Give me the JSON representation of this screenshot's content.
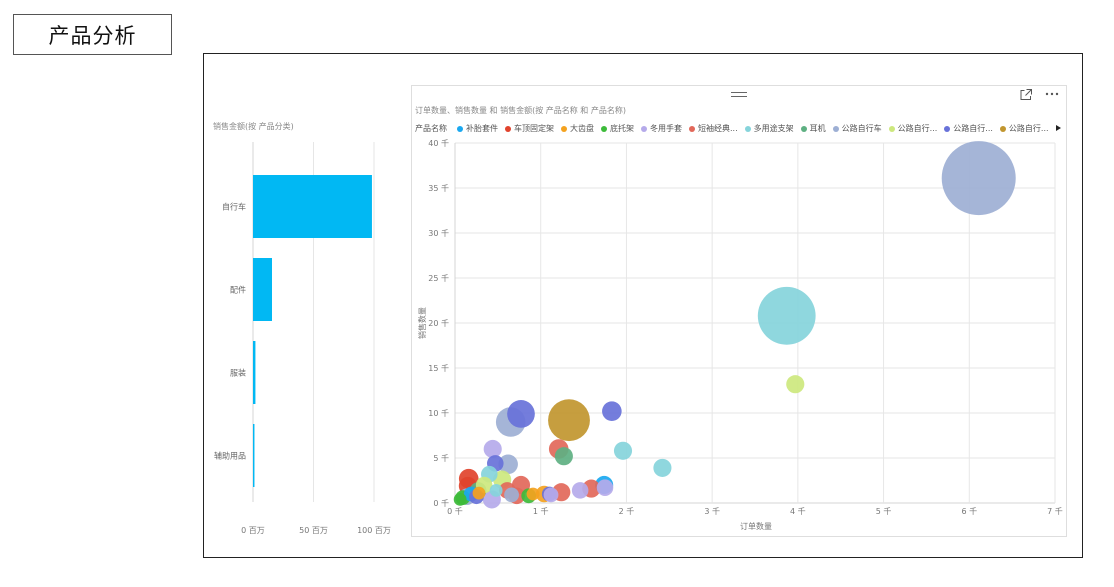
{
  "page": {
    "title": "产品分析"
  },
  "visual_header": {
    "drag_icon": "drag-handle-icon",
    "focus_icon": "focus-mode-icon",
    "more_icon": "more-options-icon"
  },
  "chart_data": [
    {
      "type": "bar",
      "orientation": "horizontal",
      "title": "销售金额(按 产品分类)",
      "categories": [
        "自行车",
        "配件",
        "服装",
        "辅助用品"
      ],
      "values": [
        98.3,
        15.7,
        2.0,
        1.2
      ],
      "xlim": [
        0,
        100
      ],
      "xticks": [
        0,
        50,
        100
      ],
      "xtick_labels": [
        "0 百万",
        "50 百万",
        "100 百万"
      ],
      "color": "#01B8F3",
      "grid": true
    },
    {
      "type": "scatter",
      "title": "订单数量、销售数量 和 销售金额(按 产品名称 和 产品名称)",
      "xlabel": "订单数量",
      "ylabel": "销售数量",
      "xlim": [
        0,
        7000
      ],
      "ylim": [
        0,
        40000
      ],
      "xticks": [
        0,
        1000,
        2000,
        3000,
        4000,
        5000,
        6000,
        7000
      ],
      "xtick_labels": [
        "0 千",
        "1 千",
        "2 千",
        "3 千",
        "4 千",
        "5 千",
        "6 千",
        "7 千"
      ],
      "yticks": [
        0,
        5000,
        10000,
        15000,
        20000,
        25000,
        30000,
        35000,
        40000
      ],
      "ytick_labels": [
        "0 千",
        "5 千",
        "10 千",
        "15 千",
        "20 千",
        "25 千",
        "30 千",
        "35 千",
        "40 千"
      ],
      "grid": true,
      "legend": {
        "position": "top",
        "title": "产品名称",
        "next_icon": "triangle-right-icon",
        "items": [
          {
            "label": "补胎套件",
            "color": "#1AA8F0"
          },
          {
            "label": "车顶固定架",
            "color": "#E1432D"
          },
          {
            "label": "大齿盘",
            "color": "#F4A21F"
          },
          {
            "label": "底托架",
            "color": "#3DBB3A"
          },
          {
            "label": "冬用手套",
            "color": "#B5AAEA"
          },
          {
            "label": "短袖经典...",
            "color": "#E2685A"
          },
          {
            "label": "多用途支架",
            "color": "#86D4DB"
          },
          {
            "label": "耳机",
            "color": "#5EB082"
          },
          {
            "label": "公路自行车",
            "color": "#9DAFD4"
          },
          {
            "label": "公路自行...",
            "color": "#CDE87E"
          },
          {
            "label": "公路自行...",
            "color": "#6872D9"
          },
          {
            "label": "公路自行...",
            "color": "#C1962F"
          }
        ]
      },
      "points": [
        {
          "x": 6110,
          "y": 36100,
          "size": 1.0,
          "color": "#9DAFD4"
        },
        {
          "x": 3870,
          "y": 20800,
          "size": 0.61,
          "color": "#86D4DB"
        },
        {
          "x": 3970,
          "y": 13200,
          "size": 0.06,
          "color": "#CDE87E"
        },
        {
          "x": 2420,
          "y": 3900,
          "size": 0.06,
          "color": "#86D4DB"
        },
        {
          "x": 1960,
          "y": 5800,
          "size": 0.06,
          "color": "#86D4DB"
        },
        {
          "x": 1830,
          "y": 10200,
          "size": 0.07,
          "color": "#6872D9"
        },
        {
          "x": 1330,
          "y": 9200,
          "size": 0.32,
          "color": "#C1962F"
        },
        {
          "x": 650,
          "y": 9000,
          "size": 0.16,
          "color": "#9DAFD4"
        },
        {
          "x": 770,
          "y": 9900,
          "size": 0.14,
          "color": "#6872D9"
        },
        {
          "x": 1210,
          "y": 6000,
          "size": 0.07,
          "color": "#E2685A"
        },
        {
          "x": 1270,
          "y": 5200,
          "size": 0.06,
          "color": "#5EB082"
        },
        {
          "x": 440,
          "y": 6000,
          "size": 0.06,
          "color": "#B5AAEA"
        },
        {
          "x": 620,
          "y": 4300,
          "size": 0.07,
          "color": "#9DAFD4"
        },
        {
          "x": 470,
          "y": 4400,
          "size": 0.05,
          "color": "#6872D9"
        },
        {
          "x": 400,
          "y": 3200,
          "size": 0.05,
          "color": "#86D4DB"
        },
        {
          "x": 160,
          "y": 2700,
          "size": 0.07,
          "color": "#E1432D"
        },
        {
          "x": 550,
          "y": 2600,
          "size": 0.06,
          "color": "#CDE87E"
        },
        {
          "x": 770,
          "y": 2000,
          "size": 0.06,
          "color": "#E2685A"
        },
        {
          "x": 1740,
          "y": 2000,
          "size": 0.06,
          "color": "#1AA8F0"
        },
        {
          "x": 1750,
          "y": 1700,
          "size": 0.05,
          "color": "#B5AAEA"
        },
        {
          "x": 1590,
          "y": 1600,
          "size": 0.06,
          "color": "#E2685A"
        },
        {
          "x": 1460,
          "y": 1400,
          "size": 0.05,
          "color": "#B5AAEA"
        },
        {
          "x": 1240,
          "y": 1200,
          "size": 0.06,
          "color": "#E2685A"
        },
        {
          "x": 1040,
          "y": 1000,
          "size": 0.05,
          "color": "#F4A21F"
        },
        {
          "x": 1100,
          "y": 1000,
          "size": 0.04,
          "color": "#6872D9"
        },
        {
          "x": 1120,
          "y": 900,
          "size": 0.04,
          "color": "#B5AAEA"
        },
        {
          "x": 860,
          "y": 800,
          "size": 0.04,
          "color": "#3DBB3A"
        },
        {
          "x": 910,
          "y": 1000,
          "size": 0.03,
          "color": "#F4A21F"
        },
        {
          "x": 150,
          "y": 1900,
          "size": 0.06,
          "color": "#E1432D"
        },
        {
          "x": 140,
          "y": 700,
          "size": 0.05,
          "color": "#9DAFD4"
        },
        {
          "x": 90,
          "y": 600,
          "size": 0.04,
          "color": "#3DBB3A"
        },
        {
          "x": 430,
          "y": 400,
          "size": 0.06,
          "color": "#B5AAEA"
        },
        {
          "x": 720,
          "y": 800,
          "size": 0.05,
          "color": "#E2685A"
        },
        {
          "x": 270,
          "y": 1400,
          "size": 0.05,
          "color": "#5EB082"
        },
        {
          "x": 340,
          "y": 2000,
          "size": 0.05,
          "color": "#CDE87E"
        },
        {
          "x": 610,
          "y": 1400,
          "size": 0.05,
          "color": "#E2685A"
        },
        {
          "x": 190,
          "y": 1000,
          "size": 0.04,
          "color": "#1AA8F0"
        },
        {
          "x": 280,
          "y": 1100,
          "size": 0.03,
          "color": "#F4A21F"
        },
        {
          "x": 250,
          "y": 700,
          "size": 0.04,
          "color": "#6872D9"
        },
        {
          "x": 480,
          "y": 1400,
          "size": 0.03,
          "color": "#86D4DB"
        },
        {
          "x": 660,
          "y": 900,
          "size": 0.04,
          "color": "#9DAFD4"
        },
        {
          "x": 60,
          "y": 400,
          "size": 0.03,
          "color": "#3DBB3A"
        }
      ]
    }
  ]
}
